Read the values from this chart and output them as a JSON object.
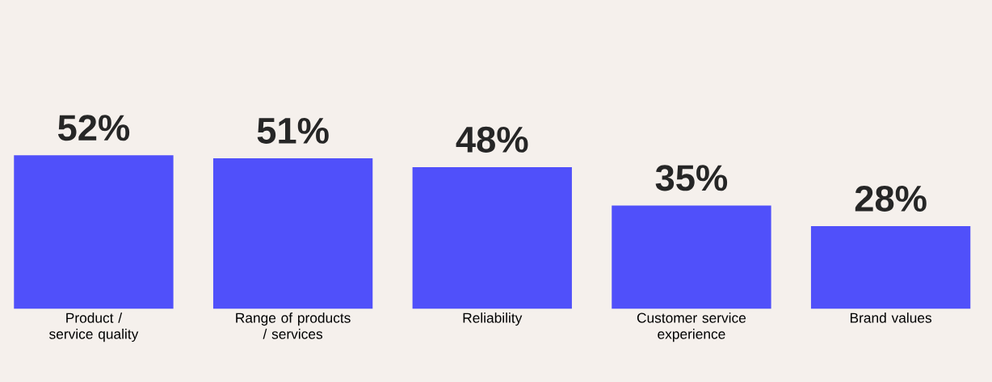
{
  "chart_data": {
    "type": "bar",
    "categories": [
      "Product / service quality",
      "Range of products / services",
      "Reliability",
      "Customer service experience",
      "Brand values"
    ],
    "values": [
      52,
      51,
      48,
      35,
      28
    ],
    "value_labels": [
      "52%",
      "51%",
      "48%",
      "35%",
      "28%"
    ],
    "color": "#5050fa"
  }
}
